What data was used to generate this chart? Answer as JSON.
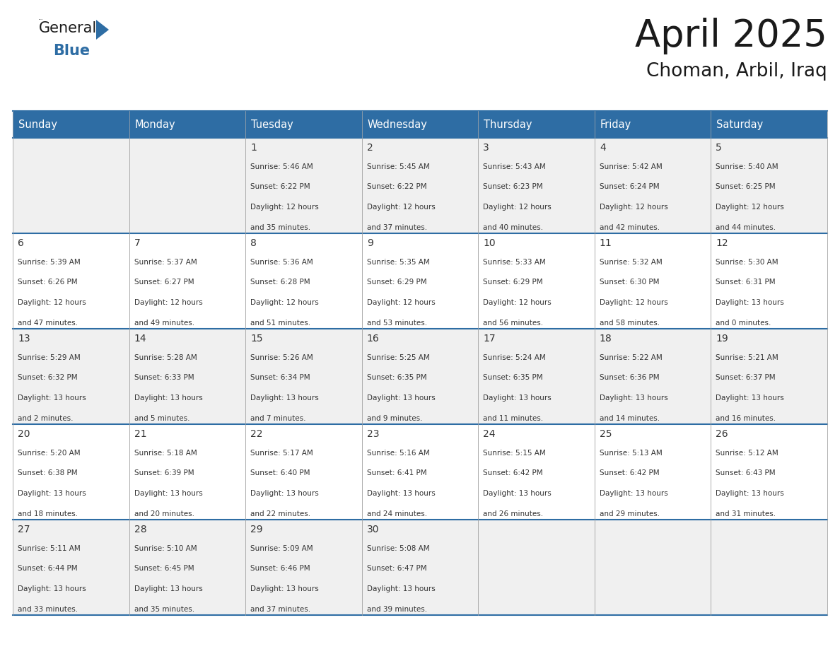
{
  "title": "April 2025",
  "subtitle": "Choman, Arbil, Iraq",
  "header_color": "#2E6DA4",
  "header_text_color": "#FFFFFF",
  "border_color": "#2E6DA4",
  "cell_border_color": "#AAAAAA",
  "row_bg_even": "#F0F0F0",
  "row_bg_odd": "#FFFFFF",
  "days_of_week": [
    "Sunday",
    "Monday",
    "Tuesday",
    "Wednesday",
    "Thursday",
    "Friday",
    "Saturday"
  ],
  "text_color": "#333333",
  "title_color": "#1a1a1a",
  "logo_color_general": "#1a1a1a",
  "logo_color_blue": "#2E6DA4",
  "logo_triangle_color": "#2E6DA4",
  "calendar": [
    [
      {
        "day": null,
        "sunrise": null,
        "sunset": null,
        "daylight_h": null,
        "daylight_m": null
      },
      {
        "day": null,
        "sunrise": null,
        "sunset": null,
        "daylight_h": null,
        "daylight_m": null
      },
      {
        "day": 1,
        "sunrise": "5:46 AM",
        "sunset": "6:22 PM",
        "daylight_h": "12 hours",
        "daylight_m": "35 minutes"
      },
      {
        "day": 2,
        "sunrise": "5:45 AM",
        "sunset": "6:22 PM",
        "daylight_h": "12 hours",
        "daylight_m": "37 minutes"
      },
      {
        "day": 3,
        "sunrise": "5:43 AM",
        "sunset": "6:23 PM",
        "daylight_h": "12 hours",
        "daylight_m": "40 minutes"
      },
      {
        "day": 4,
        "sunrise": "5:42 AM",
        "sunset": "6:24 PM",
        "daylight_h": "12 hours",
        "daylight_m": "42 minutes"
      },
      {
        "day": 5,
        "sunrise": "5:40 AM",
        "sunset": "6:25 PM",
        "daylight_h": "12 hours",
        "daylight_m": "44 minutes"
      }
    ],
    [
      {
        "day": 6,
        "sunrise": "5:39 AM",
        "sunset": "6:26 PM",
        "daylight_h": "12 hours",
        "daylight_m": "47 minutes"
      },
      {
        "day": 7,
        "sunrise": "5:37 AM",
        "sunset": "6:27 PM",
        "daylight_h": "12 hours",
        "daylight_m": "49 minutes"
      },
      {
        "day": 8,
        "sunrise": "5:36 AM",
        "sunset": "6:28 PM",
        "daylight_h": "12 hours",
        "daylight_m": "51 minutes"
      },
      {
        "day": 9,
        "sunrise": "5:35 AM",
        "sunset": "6:29 PM",
        "daylight_h": "12 hours",
        "daylight_m": "53 minutes"
      },
      {
        "day": 10,
        "sunrise": "5:33 AM",
        "sunset": "6:29 PM",
        "daylight_h": "12 hours",
        "daylight_m": "56 minutes"
      },
      {
        "day": 11,
        "sunrise": "5:32 AM",
        "sunset": "6:30 PM",
        "daylight_h": "12 hours",
        "daylight_m": "58 minutes"
      },
      {
        "day": 12,
        "sunrise": "5:30 AM",
        "sunset": "6:31 PM",
        "daylight_h": "13 hours",
        "daylight_m": "0 minutes"
      }
    ],
    [
      {
        "day": 13,
        "sunrise": "5:29 AM",
        "sunset": "6:32 PM",
        "daylight_h": "13 hours",
        "daylight_m": "2 minutes"
      },
      {
        "day": 14,
        "sunrise": "5:28 AM",
        "sunset": "6:33 PM",
        "daylight_h": "13 hours",
        "daylight_m": "5 minutes"
      },
      {
        "day": 15,
        "sunrise": "5:26 AM",
        "sunset": "6:34 PM",
        "daylight_h": "13 hours",
        "daylight_m": "7 minutes"
      },
      {
        "day": 16,
        "sunrise": "5:25 AM",
        "sunset": "6:35 PM",
        "daylight_h": "13 hours",
        "daylight_m": "9 minutes"
      },
      {
        "day": 17,
        "sunrise": "5:24 AM",
        "sunset": "6:35 PM",
        "daylight_h": "13 hours",
        "daylight_m": "11 minutes"
      },
      {
        "day": 18,
        "sunrise": "5:22 AM",
        "sunset": "6:36 PM",
        "daylight_h": "13 hours",
        "daylight_m": "14 minutes"
      },
      {
        "day": 19,
        "sunrise": "5:21 AM",
        "sunset": "6:37 PM",
        "daylight_h": "13 hours",
        "daylight_m": "16 minutes"
      }
    ],
    [
      {
        "day": 20,
        "sunrise": "5:20 AM",
        "sunset": "6:38 PM",
        "daylight_h": "13 hours",
        "daylight_m": "18 minutes"
      },
      {
        "day": 21,
        "sunrise": "5:18 AM",
        "sunset": "6:39 PM",
        "daylight_h": "13 hours",
        "daylight_m": "20 minutes"
      },
      {
        "day": 22,
        "sunrise": "5:17 AM",
        "sunset": "6:40 PM",
        "daylight_h": "13 hours",
        "daylight_m": "22 minutes"
      },
      {
        "day": 23,
        "sunrise": "5:16 AM",
        "sunset": "6:41 PM",
        "daylight_h": "13 hours",
        "daylight_m": "24 minutes"
      },
      {
        "day": 24,
        "sunrise": "5:15 AM",
        "sunset": "6:42 PM",
        "daylight_h": "13 hours",
        "daylight_m": "26 minutes"
      },
      {
        "day": 25,
        "sunrise": "5:13 AM",
        "sunset": "6:42 PM",
        "daylight_h": "13 hours",
        "daylight_m": "29 minutes"
      },
      {
        "day": 26,
        "sunrise": "5:12 AM",
        "sunset": "6:43 PM",
        "daylight_h": "13 hours",
        "daylight_m": "31 minutes"
      }
    ],
    [
      {
        "day": 27,
        "sunrise": "5:11 AM",
        "sunset": "6:44 PM",
        "daylight_h": "13 hours",
        "daylight_m": "33 minutes"
      },
      {
        "day": 28,
        "sunrise": "5:10 AM",
        "sunset": "6:45 PM",
        "daylight_h": "13 hours",
        "daylight_m": "35 minutes"
      },
      {
        "day": 29,
        "sunrise": "5:09 AM",
        "sunset": "6:46 PM",
        "daylight_h": "13 hours",
        "daylight_m": "37 minutes"
      },
      {
        "day": 30,
        "sunrise": "5:08 AM",
        "sunset": "6:47 PM",
        "daylight_h": "13 hours",
        "daylight_m": "39 minutes"
      },
      {
        "day": null,
        "sunrise": null,
        "sunset": null,
        "daylight_h": null,
        "daylight_m": null
      },
      {
        "day": null,
        "sunrise": null,
        "sunset": null,
        "daylight_h": null,
        "daylight_m": null
      },
      {
        "day": null,
        "sunrise": null,
        "sunset": null,
        "daylight_h": null,
        "daylight_m": null
      }
    ]
  ]
}
